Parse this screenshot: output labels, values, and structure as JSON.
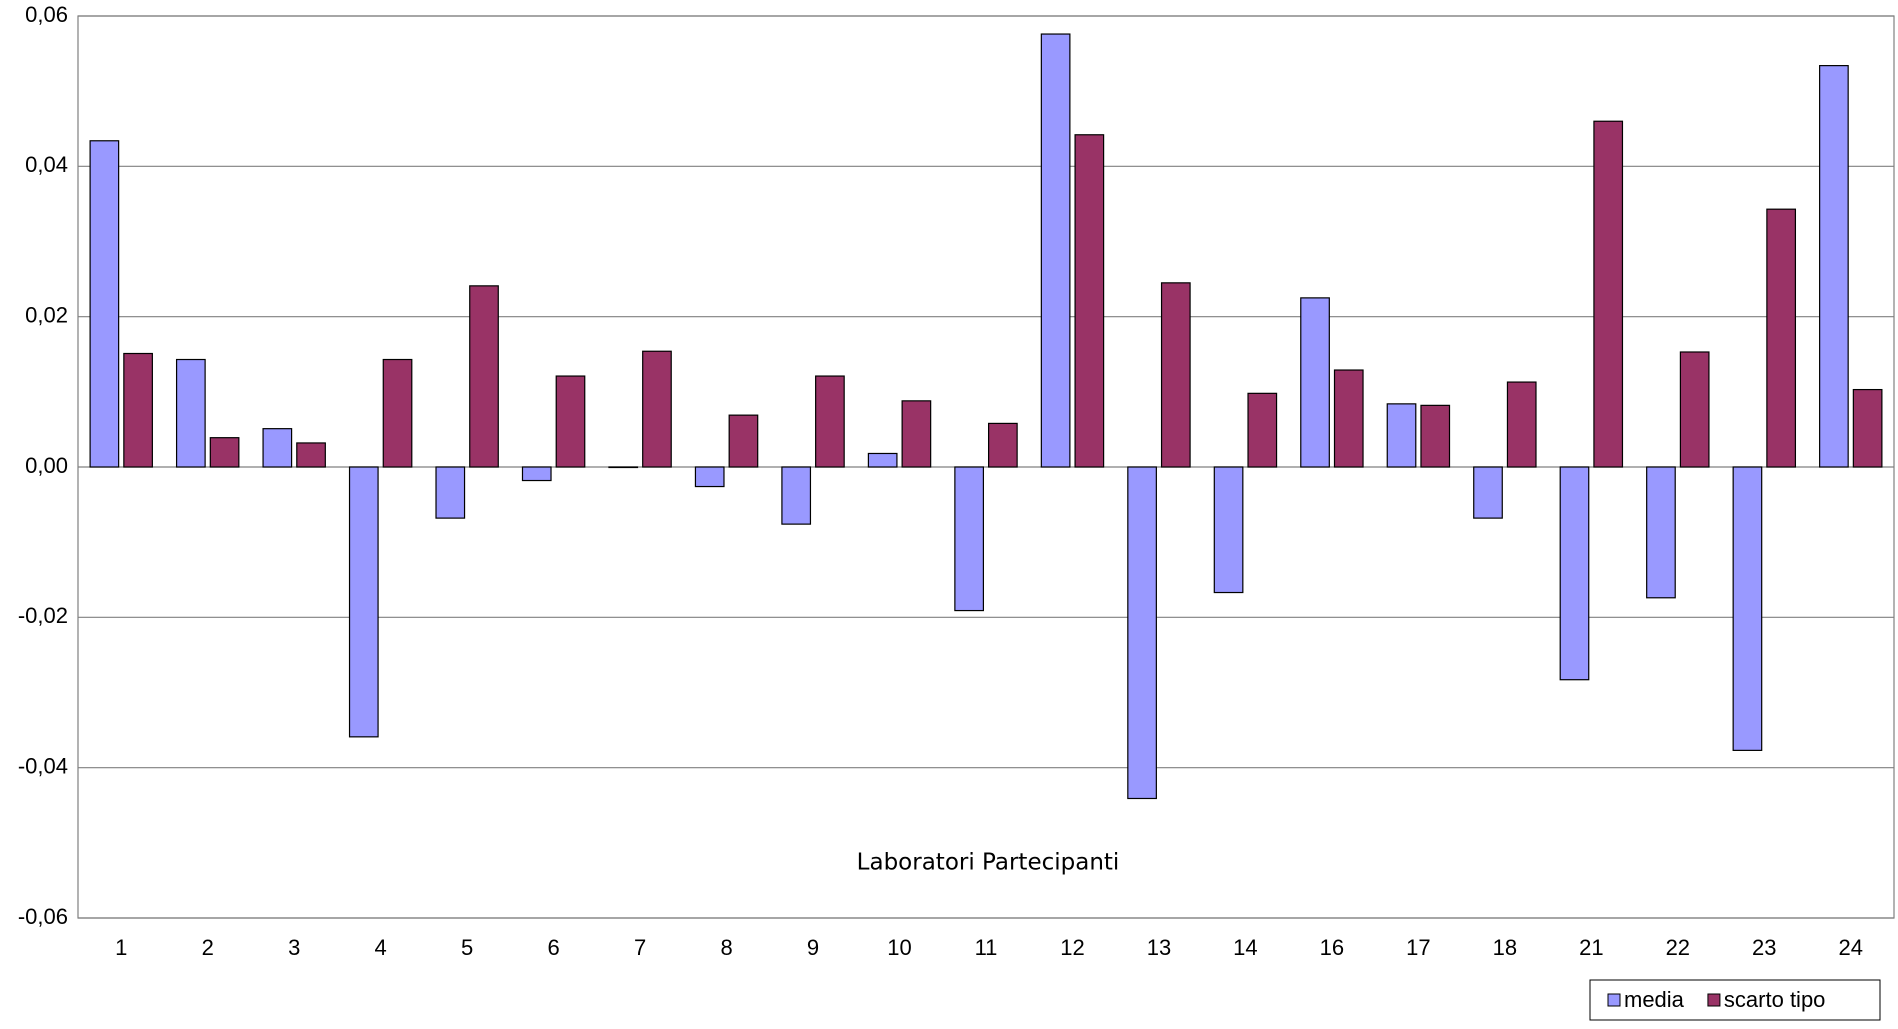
{
  "chart_data": {
    "type": "bar",
    "annotation": "Laboratori Partecipanti",
    "categories": [
      "1",
      "2",
      "3",
      "4",
      "5",
      "6",
      "7",
      "8",
      "9",
      "10",
      "11",
      "12",
      "13",
      "14",
      "16",
      "17",
      "18",
      "21",
      "22",
      "23",
      "24"
    ],
    "series": [
      {
        "name": "media",
        "color": "#9999ff",
        "values": [
          0.0434,
          0.0143,
          0.0051,
          -0.0359,
          -0.0068,
          -0.0018,
          0.0,
          -0.0026,
          -0.0076,
          0.0018,
          -0.0191,
          0.0576,
          -0.0441,
          -0.0167,
          0.0225,
          0.0084,
          -0.0068,
          -0.0283,
          -0.0174,
          -0.0377,
          0.0534
        ]
      },
      {
        "name": "scarto tipo",
        "color": "#993366",
        "values": [
          0.0151,
          0.0039,
          0.0032,
          0.0143,
          0.0241,
          0.0121,
          0.0154,
          0.0069,
          0.0121,
          0.0088,
          0.0058,
          0.0442,
          0.0245,
          0.0098,
          0.0129,
          0.0082,
          0.0113,
          0.046,
          0.0153,
          0.0343,
          0.0103
        ]
      }
    ],
    "ylim": [
      -0.06,
      0.06
    ],
    "yticks": [
      {
        "value": -0.06,
        "label": "-0,06"
      },
      {
        "value": -0.04,
        "label": "-0,04"
      },
      {
        "value": -0.02,
        "label": "-0,02"
      },
      {
        "value": 0,
        "label": "0,00"
      },
      {
        "value": 0.02,
        "label": "0,02"
      },
      {
        "value": 0.04,
        "label": "0,04"
      },
      {
        "value": 0.06,
        "label": "0,06"
      }
    ],
    "grid": true,
    "legend": "bottom-right"
  }
}
